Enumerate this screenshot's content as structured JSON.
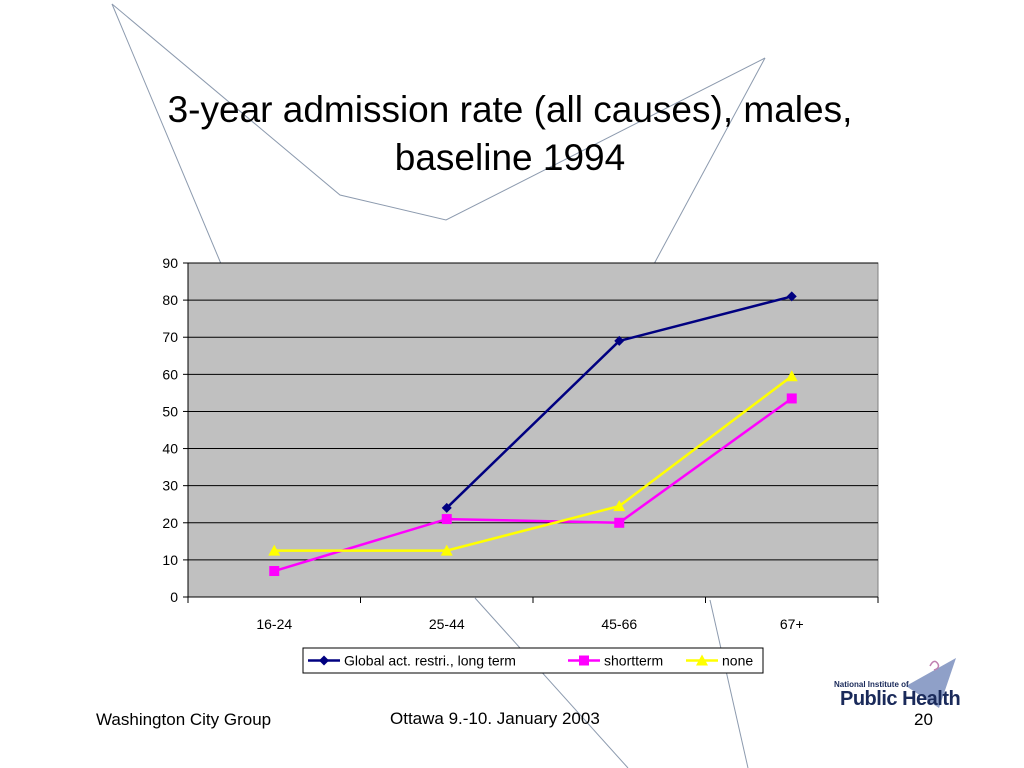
{
  "slide": {
    "title": "3-year admission rate (all causes), males, baseline 1994",
    "footer_left": "Washington City Group",
    "footer_center": "Ottawa 9.-10. January 2003",
    "page_number": "20",
    "logo_text_small": "National Institute of",
    "logo_text_large": "Public Health"
  },
  "chart_data": {
    "type": "line",
    "title": "",
    "xlabel": "",
    "ylabel": "",
    "categories": [
      "16-24",
      "25-44",
      "45-66",
      "67+"
    ],
    "ylim": [
      0,
      90
    ],
    "yticks": [
      0,
      10,
      20,
      30,
      40,
      50,
      60,
      70,
      80,
      90
    ],
    "grid": true,
    "legend_position": "bottom",
    "plot_background": "#c0c0c0",
    "series": [
      {
        "name": "Global act. restri., long term",
        "values": [
          null,
          24,
          69,
          81
        ],
        "color": "#000080",
        "marker": "diamond"
      },
      {
        "name": "shortterm",
        "values": [
          7,
          21,
          20,
          53.5
        ],
        "color": "#ff00ff",
        "marker": "square"
      },
      {
        "name": "none",
        "values": [
          12.5,
          12.5,
          24.5,
          59.5
        ],
        "color": "#ffff00",
        "marker": "triangle"
      }
    ]
  },
  "colors": {
    "decor_line": "#8c9aae",
    "logo_accent": "#8fa0c8"
  }
}
